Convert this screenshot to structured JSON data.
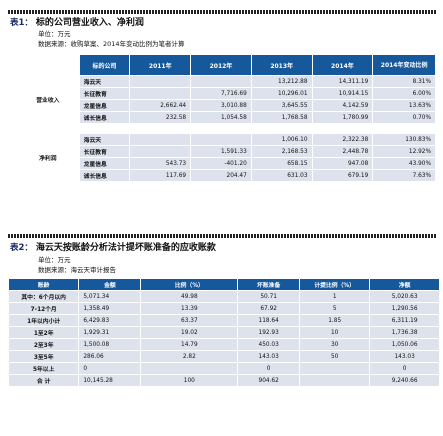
{
  "table1": {
    "prefix": "表1：",
    "title": "标的公司营业收入、净利润",
    "unit": "单位：万元",
    "source": "数据来源：收购草案、2014年变动比例为笔者计算",
    "headers": [
      "标的公司",
      "2011年",
      "2012年",
      "2013年",
      "2014年",
      "2014年变动比例"
    ],
    "groups": [
      {
        "name": "营业收入",
        "rows": [
          {
            "company": "海云天",
            "y2011": "",
            "y2012": "",
            "y2013": "13,212.88",
            "y2014": "14,311.19",
            "change": "8.31%"
          },
          {
            "company": "长征教育",
            "y2011": "",
            "y2012": "7,716.69",
            "y2013": "10,296.01",
            "y2014": "10,914.15",
            "change": "6.00%"
          },
          {
            "company": "龙星信息",
            "y2011": "2,662.44",
            "y2012": "3,010.88",
            "y2013": "3,645.55",
            "y2014": "4,142.59",
            "change": "13.63%"
          },
          {
            "company": "诚长信息",
            "y2011": "232.58",
            "y2012": "1,054.58",
            "y2013": "1,768.58",
            "y2014": "1,780.99",
            "change": "0.70%"
          }
        ]
      },
      {
        "name": "净利润",
        "rows": [
          {
            "company": "海云天",
            "y2011": "",
            "y2012": "",
            "y2013": "1,006.10",
            "y2014": "2,322.38",
            "change": "130.83%"
          },
          {
            "company": "长征教育",
            "y2011": "",
            "y2012": "1,591.33",
            "y2013": "2,168.53",
            "y2014": "2,448.78",
            "change": "12.92%"
          },
          {
            "company": "龙星信息",
            "y2011": "543.73",
            "y2012": "-401.20",
            "y2013": "658.15",
            "y2014": "947.08",
            "change": "43.90%"
          },
          {
            "company": "诚长信息",
            "y2011": "117.69",
            "y2012": "204.47",
            "y2013": "631.03",
            "y2014": "679.19",
            "change": "7.63%"
          }
        ]
      }
    ]
  },
  "table2": {
    "prefix": "表2：",
    "title": "海云天按账龄分析法计提坏账准备的应收账款",
    "unit": "单位：万元",
    "source": "数据来源：海云天审计报告",
    "headers": [
      "账龄",
      "金额",
      "比例（%）",
      "坏账准备",
      "计提比例（%）",
      "净额"
    ],
    "rows": [
      {
        "age": "其中：6个月以内",
        "amount": "5,071.34",
        "ratio": "49.98",
        "provision": "50.71",
        "rate": "1",
        "net": "5,020.63"
      },
      {
        "age": "7-12个月",
        "amount": "1,358.49",
        "ratio": "13.39",
        "provision": "67.92",
        "rate": "5",
        "net": "1,290.56"
      },
      {
        "age": "1年以内小计",
        "amount": "6,429.83",
        "ratio": "63.37",
        "provision": "118.64",
        "rate": "1.85",
        "net": "6,311.19"
      },
      {
        "age": "1至2年",
        "amount": "1,929.31",
        "ratio": "19.02",
        "provision": "192.93",
        "rate": "10",
        "net": "1,736.38"
      },
      {
        "age": "2至3年",
        "amount": "1,500.08",
        "ratio": "14.79",
        "provision": "450.03",
        "rate": "30",
        "net": "1,050.06"
      },
      {
        "age": "3至5年",
        "amount": "286.06",
        "ratio": "2.82",
        "provision": "143.03",
        "rate": "50",
        "net": "143.03"
      },
      {
        "age": "5年以上",
        "amount": "0",
        "ratio": "",
        "provision": "0",
        "rate": "",
        "net": "0"
      },
      {
        "age": "合 计",
        "amount": "10,145.28",
        "ratio": "100",
        "provision": "904.62",
        "rate": "",
        "net": "9,240.66"
      }
    ]
  }
}
